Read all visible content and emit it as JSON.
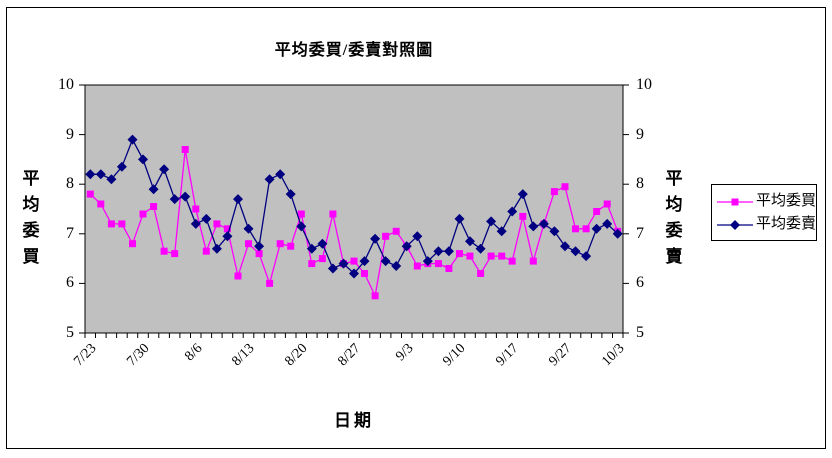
{
  "chart_data": {
    "type": "line",
    "title": "平均委買/委賣對照圖",
    "xlabel": "日期",
    "ylabel_left": "平均委買",
    "ylabel_right": "平均委賣",
    "ylim": [
      5,
      10
    ],
    "y_ticks": [
      10,
      9,
      8,
      7,
      6,
      5
    ],
    "x_major_labels": [
      "7/23",
      "7/30",
      "8/6",
      "8/13",
      "8/20",
      "8/27",
      "9/3",
      "9/10",
      "9/17",
      "9/27",
      "10/3"
    ],
    "x_major_every": 5,
    "n_points": 51,
    "grid": "off",
    "legend_position": "right",
    "plot_bg": "#C0C0C0",
    "axis_color": "#000000",
    "series": [
      {
        "name": "平均委買",
        "color": "#FF00FF",
        "marker": "square",
        "values": [
          7.8,
          7.6,
          7.2,
          7.2,
          6.8,
          7.4,
          7.55,
          6.65,
          6.6,
          8.7,
          7.5,
          6.65,
          7.2,
          7.1,
          6.15,
          6.8,
          6.6,
          6.0,
          6.8,
          6.75,
          7.4,
          6.4,
          6.5,
          7.4,
          6.4,
          6.45,
          6.2,
          5.75,
          6.95,
          7.05,
          6.75,
          6.35,
          6.4,
          6.4,
          6.3,
          6.6,
          6.55,
          6.2,
          6.55,
          6.55,
          6.45,
          7.35,
          6.45,
          7.2,
          7.85,
          7.95,
          7.1,
          7.1,
          7.45,
          7.6,
          7.05
        ]
      },
      {
        "name": "平均委賣",
        "color": "#000080",
        "marker": "diamond",
        "values": [
          8.2,
          8.2,
          8.1,
          8.35,
          8.9,
          8.5,
          7.9,
          8.3,
          7.7,
          7.75,
          7.2,
          7.3,
          6.7,
          6.95,
          7.7,
          7.1,
          6.75,
          8.1,
          8.2,
          7.8,
          7.15,
          6.7,
          6.8,
          6.3,
          6.4,
          6.2,
          6.45,
          6.9,
          6.45,
          6.35,
          6.75,
          6.95,
          6.45,
          6.65,
          6.65,
          7.3,
          6.85,
          6.7,
          7.25,
          7.05,
          7.45,
          7.8,
          7.15,
          7.2,
          7.05,
          6.75,
          6.65,
          6.55,
          7.1,
          7.2,
          7.0
        ]
      }
    ]
  }
}
